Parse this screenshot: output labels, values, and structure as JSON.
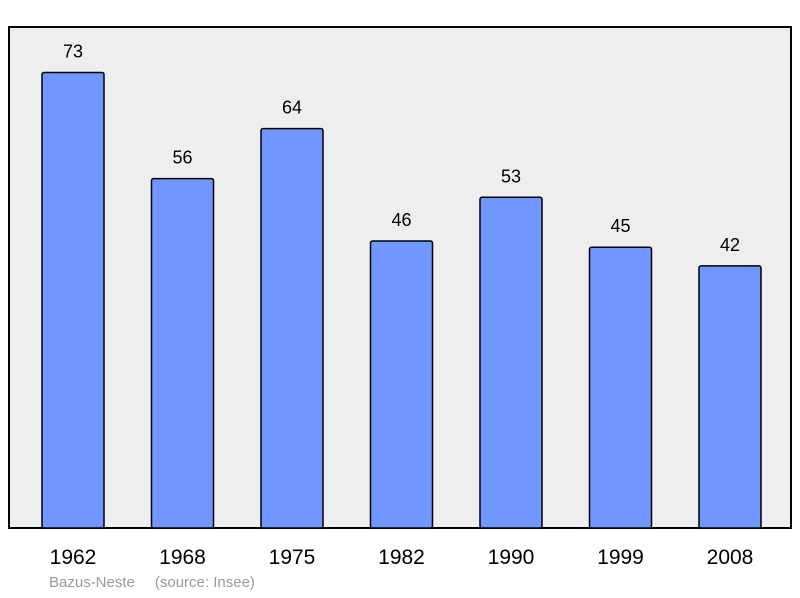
{
  "chart_data": {
    "type": "bar",
    "categories": [
      "1962",
      "1968",
      "1975",
      "1982",
      "1990",
      "1999",
      "2008"
    ],
    "values": [
      73,
      56,
      64,
      46,
      53,
      45,
      42
    ],
    "data_labels": [
      "73",
      "56",
      "64",
      "46",
      "53",
      "45",
      "42"
    ],
    "title": "",
    "xlabel": "",
    "ylabel": "",
    "ylim": [
      0,
      80
    ],
    "grid": false,
    "legend": "none",
    "colors": {
      "bar_fill": "#7096ff",
      "bar_stroke": "#000000",
      "plot_background": "#eeeeee",
      "frame": "#000000"
    }
  },
  "caption": {
    "place": "Bazus-Neste",
    "source": "(source: Insee)"
  }
}
